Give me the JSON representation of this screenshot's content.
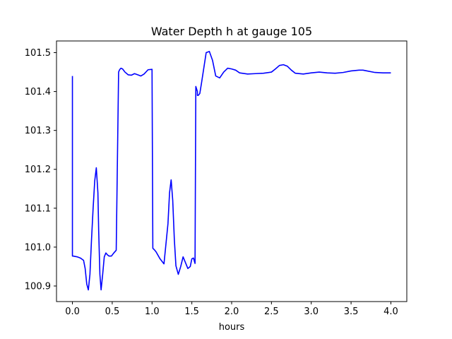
{
  "chart_data": {
    "type": "line",
    "title": "Water Depth h at gauge 105",
    "xlabel": "hours",
    "ylabel": "",
    "xlim": [
      -0.2,
      4.2
    ],
    "ylim": [
      100.86,
      101.53
    ],
    "xticks": [
      0.0,
      0.5,
      1.0,
      1.5,
      2.0,
      2.5,
      3.0,
      3.5,
      4.0
    ],
    "xtick_labels": [
      "0.0",
      "0.5",
      "1.0",
      "1.5",
      "2.0",
      "2.5",
      "3.0",
      "3.5",
      "4.0"
    ],
    "yticks": [
      100.9,
      101.0,
      101.1,
      101.2,
      101.3,
      101.4,
      101.5
    ],
    "ytick_labels": [
      "100.9",
      "101.0",
      "101.1",
      "101.2",
      "101.3",
      "101.4",
      "101.5"
    ],
    "grid": false,
    "series": [
      {
        "color": "#0000ff",
        "x": [
          0.0,
          0.0,
          0.01,
          0.06,
          0.1,
          0.14,
          0.16,
          0.18,
          0.2,
          0.22,
          0.24,
          0.26,
          0.28,
          0.3,
          0.32,
          0.33,
          0.345,
          0.36,
          0.38,
          0.4,
          0.42,
          0.44,
          0.46,
          0.49,
          0.52,
          0.55,
          0.58,
          0.59,
          0.6,
          0.61,
          0.63,
          0.66,
          0.7,
          0.74,
          0.78,
          0.82,
          0.86,
          0.9,
          0.95,
          1.0,
          1.01,
          1.03,
          1.03,
          1.05,
          1.1,
          1.15,
          1.2,
          1.22,
          1.24,
          1.26,
          1.28,
          1.3,
          1.33,
          1.36,
          1.39,
          1.42,
          1.45,
          1.48,
          1.5,
          1.52,
          1.54,
          1.55,
          1.57,
          1.57,
          1.58,
          1.6,
          1.62,
          1.65,
          1.68,
          1.72,
          1.76,
          1.8,
          1.85,
          1.9,
          1.95,
          2.0,
          2.05,
          2.1,
          2.2,
          2.3,
          2.4,
          2.5,
          2.55,
          2.6,
          2.65,
          2.7,
          2.75,
          2.8,
          2.9,
          3.0,
          3.1,
          3.2,
          3.3,
          3.4,
          3.5,
          3.6,
          3.65,
          3.7,
          3.8,
          3.9,
          4.0
        ],
        "y": [
          101.44,
          100.977,
          100.977,
          100.975,
          100.972,
          100.966,
          100.945,
          100.905,
          100.89,
          100.93,
          101.02,
          101.1,
          101.17,
          101.204,
          101.14,
          101.04,
          100.93,
          100.89,
          100.93,
          100.975,
          100.985,
          100.98,
          100.977,
          100.977,
          100.985,
          100.992,
          101.45,
          101.455,
          101.458,
          101.46,
          101.458,
          101.45,
          101.443,
          101.442,
          101.446,
          101.443,
          101.44,
          101.445,
          101.456,
          101.457,
          100.997,
          100.993,
          100.993,
          100.988,
          100.97,
          100.957,
          101.06,
          101.14,
          101.173,
          101.12,
          101.02,
          100.952,
          100.93,
          100.95,
          100.975,
          100.96,
          100.945,
          100.95,
          100.97,
          100.972,
          100.958,
          101.413,
          101.4,
          101.39,
          101.39,
          101.395,
          101.42,
          101.46,
          101.5,
          101.503,
          101.48,
          101.44,
          101.435,
          101.45,
          101.46,
          101.458,
          101.455,
          101.448,
          101.445,
          101.446,
          101.447,
          101.45,
          101.458,
          101.467,
          101.469,
          101.465,
          101.455,
          101.447,
          101.445,
          101.448,
          101.45,
          101.448,
          101.447,
          101.449,
          101.453,
          101.455,
          101.455,
          101.453,
          101.449,
          101.448,
          101.448
        ]
      }
    ]
  }
}
